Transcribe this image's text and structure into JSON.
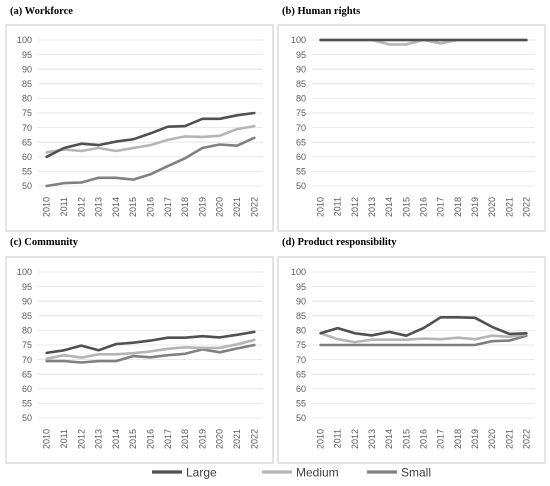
{
  "legend": [
    {
      "name": "Large",
      "color": "#505050"
    },
    {
      "name": "Medium",
      "color": "#b5b5b5"
    },
    {
      "name": "Small",
      "color": "#808080"
    }
  ],
  "chart_data": [
    {
      "type": "line",
      "title": "(a)   Workforce",
      "x": [
        "2010",
        "2011",
        "2012",
        "2013",
        "2014",
        "2015",
        "2016",
        "2017",
        "2018",
        "2019",
        "2020",
        "2021",
        "2022"
      ],
      "ylim": [
        50,
        100
      ],
      "yticks": [
        50,
        55,
        60,
        65,
        70,
        75,
        80,
        85,
        90,
        95,
        100
      ],
      "grid": true,
      "series": [
        {
          "name": "Large",
          "values": [
            60,
            63,
            64.5,
            64,
            65.2,
            66,
            68,
            70.3,
            70.5,
            73,
            73,
            74.2,
            75
          ]
        },
        {
          "name": "Medium",
          "values": [
            61.5,
            62.5,
            62,
            63,
            62,
            63,
            64,
            65.8,
            67,
            66.8,
            67.2,
            69.5,
            70.5
          ]
        },
        {
          "name": "Small",
          "values": [
            50,
            51,
            51.2,
            52.8,
            52.8,
            52.2,
            54,
            56.8,
            59.5,
            63,
            64.2,
            63.8,
            66.5
          ]
        }
      ]
    },
    {
      "type": "line",
      "title": "(b)   Human rights",
      "x": [
        "2010",
        "2011",
        "2012",
        "2013",
        "2014",
        "2015",
        "2016",
        "2017",
        "2018",
        "2019",
        "2020",
        "2021",
        "2022"
      ],
      "ylim": [
        50,
        100
      ],
      "yticks": [
        50,
        55,
        60,
        65,
        70,
        75,
        80,
        85,
        90,
        95,
        100
      ],
      "grid": true,
      "series": [
        {
          "name": "Large",
          "values": [
            100,
            100,
            100,
            100,
            100,
            100,
            100,
            100,
            100,
            100,
            100,
            100,
            100
          ]
        },
        {
          "name": "Medium",
          "values": [
            100,
            100,
            100,
            100,
            98.5,
            98.5,
            100,
            98.8,
            100,
            100,
            100,
            100,
            100
          ]
        },
        {
          "name": "Small",
          "values": [
            100,
            100,
            100,
            100,
            100,
            100,
            100,
            100,
            100,
            100,
            100,
            100,
            100
          ]
        }
      ]
    },
    {
      "type": "line",
      "title": "(c)   Community",
      "x": [
        "2010",
        "2011",
        "2012",
        "2013",
        "2014",
        "2015",
        "2016",
        "2017",
        "2018",
        "2019",
        "2020",
        "2021",
        "2022"
      ],
      "ylim": [
        50,
        100
      ],
      "yticks": [
        50,
        55,
        60,
        65,
        70,
        75,
        80,
        85,
        90,
        95,
        100
      ],
      "grid": true,
      "series": [
        {
          "name": "Large",
          "values": [
            72.3,
            73.2,
            74.8,
            73.2,
            75.3,
            75.8,
            76.5,
            77.5,
            77.5,
            78,
            77.6,
            78.5,
            79.5
          ]
        },
        {
          "name": "Medium",
          "values": [
            70.3,
            71.5,
            70.7,
            71.8,
            71.8,
            72.2,
            72.8,
            73.7,
            74.2,
            74,
            74,
            75.2,
            76.7
          ]
        },
        {
          "name": "Small",
          "values": [
            69.5,
            69.5,
            69,
            69.5,
            69.5,
            71.2,
            70.8,
            71.5,
            72,
            73.5,
            72.5,
            73.8,
            75
          ]
        }
      ]
    },
    {
      "type": "line",
      "title": "(d)   Product responsibility",
      "x": [
        "2010",
        "2011",
        "2012",
        "2013",
        "2014",
        "2015",
        "2016",
        "2017",
        "2018",
        "2019",
        "2020",
        "2021",
        "2022"
      ],
      "ylim": [
        50,
        100
      ],
      "yticks": [
        50,
        55,
        60,
        65,
        70,
        75,
        80,
        85,
        90,
        95,
        100
      ],
      "grid": true,
      "series": [
        {
          "name": "Large",
          "values": [
            79,
            80.8,
            79,
            78.3,
            79.5,
            78.2,
            80.8,
            84.5,
            84.5,
            84.3,
            81.2,
            78.8,
            79
          ]
        },
        {
          "name": "Medium",
          "values": [
            79,
            77,
            76,
            76.8,
            76.8,
            76.8,
            77.2,
            77,
            77.5,
            77,
            78.2,
            77.8,
            78.7
          ]
        },
        {
          "name": "Small",
          "values": [
            75,
            75,
            75,
            75,
            75,
            75,
            75,
            75,
            75,
            75,
            76.3,
            76.5,
            78.2
          ]
        }
      ]
    }
  ]
}
